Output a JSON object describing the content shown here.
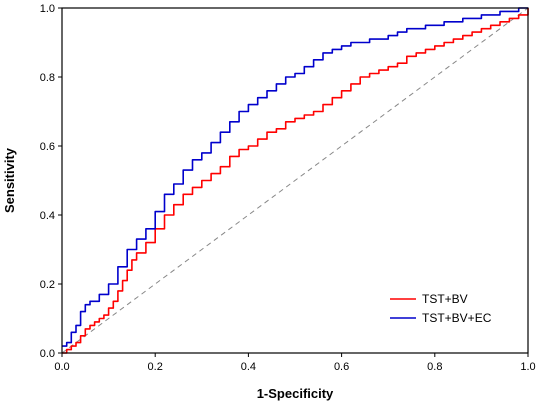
{
  "chart_data": {
    "type": "line",
    "xlabel": "1-Specificity",
    "ylabel": "Sensitivity",
    "xlim": [
      0,
      1
    ],
    "ylim": [
      0,
      1
    ],
    "x_ticks": [
      "0.0",
      "0.2",
      "0.4",
      "0.6",
      "0.8",
      "1.0"
    ],
    "y_ticks": [
      "0.0",
      "0.2",
      "0.4",
      "0.6",
      "0.8",
      "1.0"
    ],
    "grid": false,
    "legend_position": "bottom-right",
    "reference_line": {
      "x": [
        0,
        1
      ],
      "y": [
        0,
        1
      ],
      "style": "dashed",
      "color": "#888888"
    },
    "series": [
      {
        "name": "TST+BV",
        "color": "#ff0000",
        "x": [
          0.0,
          0.01,
          0.02,
          0.03,
          0.04,
          0.05,
          0.06,
          0.07,
          0.08,
          0.09,
          0.1,
          0.11,
          0.12,
          0.13,
          0.14,
          0.15,
          0.16,
          0.18,
          0.2,
          0.22,
          0.24,
          0.26,
          0.28,
          0.3,
          0.32,
          0.34,
          0.36,
          0.38,
          0.4,
          0.42,
          0.44,
          0.46,
          0.48,
          0.5,
          0.52,
          0.54,
          0.56,
          0.58,
          0.6,
          0.62,
          0.64,
          0.66,
          0.68,
          0.7,
          0.72,
          0.74,
          0.76,
          0.78,
          0.8,
          0.82,
          0.84,
          0.86,
          0.88,
          0.9,
          0.92,
          0.94,
          0.96,
          0.98,
          1.0
        ],
        "y": [
          0.0,
          0.01,
          0.02,
          0.03,
          0.05,
          0.07,
          0.08,
          0.09,
          0.1,
          0.11,
          0.13,
          0.15,
          0.18,
          0.21,
          0.24,
          0.27,
          0.29,
          0.32,
          0.36,
          0.4,
          0.43,
          0.46,
          0.48,
          0.5,
          0.52,
          0.54,
          0.57,
          0.59,
          0.6,
          0.62,
          0.64,
          0.65,
          0.67,
          0.68,
          0.69,
          0.7,
          0.72,
          0.74,
          0.76,
          0.78,
          0.8,
          0.81,
          0.82,
          0.83,
          0.84,
          0.86,
          0.87,
          0.88,
          0.89,
          0.9,
          0.91,
          0.92,
          0.93,
          0.94,
          0.95,
          0.96,
          0.97,
          0.98,
          1.0
        ]
      },
      {
        "name": "TST+BV+EC",
        "color": "#0000cc",
        "x": [
          0.0,
          0.01,
          0.02,
          0.03,
          0.04,
          0.05,
          0.06,
          0.08,
          0.1,
          0.12,
          0.14,
          0.16,
          0.18,
          0.2,
          0.22,
          0.24,
          0.26,
          0.28,
          0.3,
          0.32,
          0.34,
          0.36,
          0.38,
          0.4,
          0.42,
          0.44,
          0.46,
          0.48,
          0.5,
          0.52,
          0.54,
          0.56,
          0.58,
          0.6,
          0.62,
          0.64,
          0.66,
          0.68,
          0.7,
          0.72,
          0.74,
          0.76,
          0.78,
          0.8,
          0.82,
          0.84,
          0.86,
          0.88,
          0.9,
          0.92,
          0.94,
          0.96,
          0.98,
          1.0
        ],
        "y": [
          0.02,
          0.03,
          0.06,
          0.08,
          0.12,
          0.14,
          0.15,
          0.17,
          0.2,
          0.25,
          0.3,
          0.33,
          0.36,
          0.41,
          0.46,
          0.49,
          0.53,
          0.56,
          0.58,
          0.61,
          0.64,
          0.67,
          0.7,
          0.72,
          0.74,
          0.76,
          0.78,
          0.8,
          0.81,
          0.83,
          0.85,
          0.87,
          0.88,
          0.89,
          0.9,
          0.9,
          0.91,
          0.91,
          0.92,
          0.93,
          0.94,
          0.94,
          0.95,
          0.95,
          0.96,
          0.96,
          0.97,
          0.97,
          0.98,
          0.98,
          0.99,
          0.99,
          1.0,
          1.0
        ]
      }
    ]
  }
}
